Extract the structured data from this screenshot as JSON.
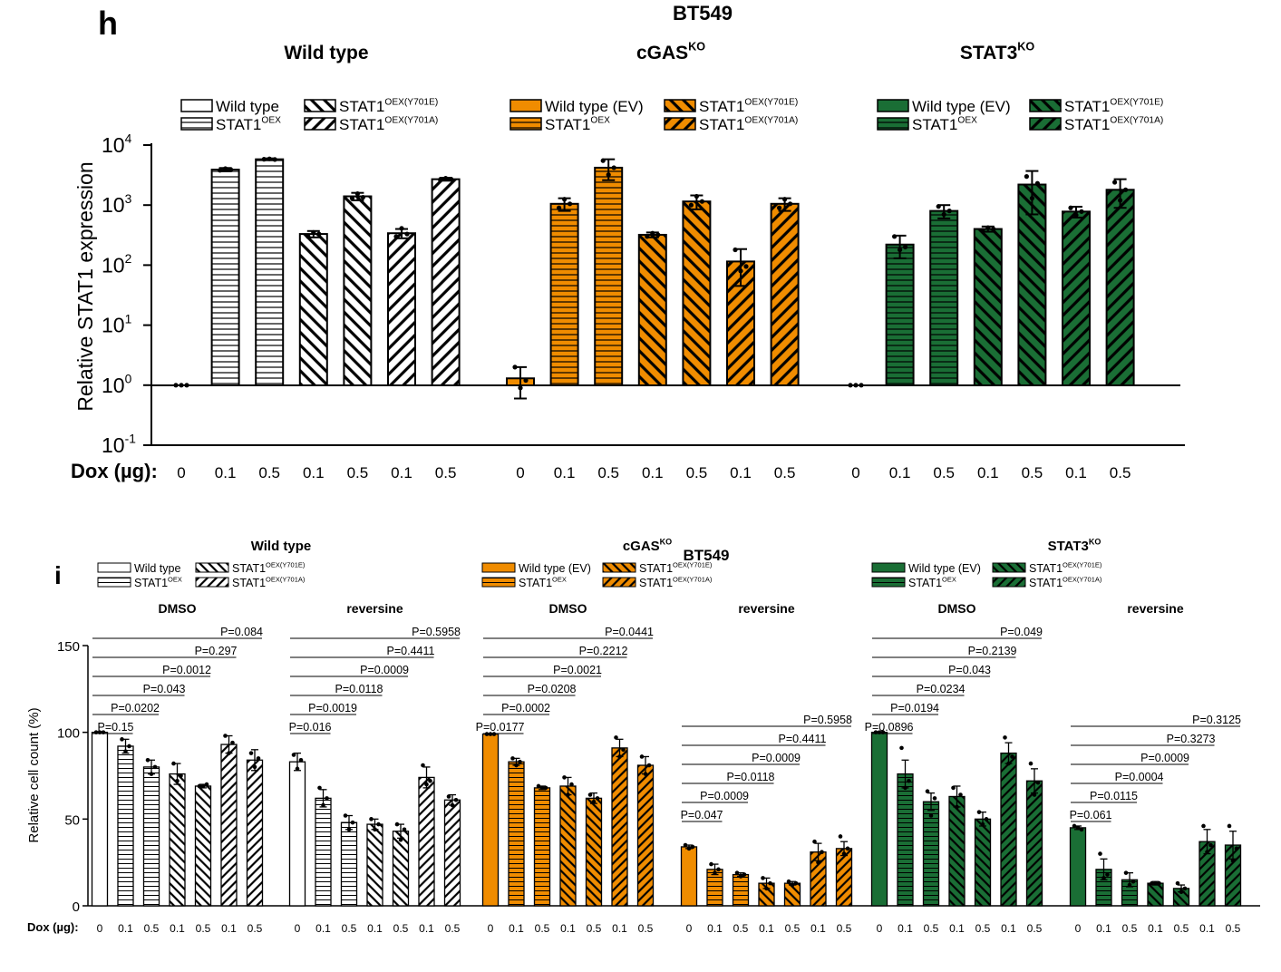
{
  "colors": {
    "wt": "#ffffff",
    "cgas": "#f08c00",
    "stat3": "#1a6e35",
    "ink": "#000000"
  },
  "panel_h": {
    "label": "h",
    "title": "BT549",
    "ylabel": "Relative STAT1 expression",
    "x_prefix": "Dox (µg):",
    "y_ticks": [
      {
        "base": "10",
        "exp": "4"
      },
      {
        "base": "10",
        "exp": "3"
      },
      {
        "base": "10",
        "exp": "2"
      },
      {
        "base": "10",
        "exp": "1"
      },
      {
        "base": "10",
        "exp": "0"
      },
      {
        "base": "10",
        "exp": "-1"
      }
    ]
  },
  "panel_i": {
    "label": "i",
    "title": "BT549",
    "ylabel": "Relative cell count (%)",
    "x_prefix": "Dox (µg):",
    "y_ticks": [
      "150",
      "100",
      "50",
      "0"
    ],
    "treatments": [
      "DMSO",
      "reversine"
    ]
  },
  "groups": [
    {
      "key": "wt",
      "title": "Wild type",
      "sup": "",
      "legend_h": [
        {
          "text": "Wild type",
          "sup": ""
        },
        {
          "text": "STAT1",
          "sup": "OEX"
        },
        {
          "text": "STAT1",
          "sup": "OEX(Y701E)"
        },
        {
          "text": "STAT1",
          "sup": "OEX(Y701A)"
        }
      ],
      "legend_i": [
        {
          "text": "Wild type",
          "sup": ""
        },
        {
          "text": "STAT1",
          "sup": "OEX"
        },
        {
          "text": "STAT1",
          "sup": "OEX(Y701E)"
        },
        {
          "text": "STAT1",
          "sup": "OEX(Y701A)"
        }
      ]
    },
    {
      "key": "cgas",
      "title": "cGAS",
      "sup": "KO",
      "legend_h": [
        {
          "text": "Wild type (EV)",
          "sup": ""
        },
        {
          "text": "STAT1",
          "sup": "OEX"
        },
        {
          "text": "STAT1",
          "sup": "OEX(Y701E)"
        },
        {
          "text": "STAT1",
          "sup": "OEX(Y701A)"
        }
      ],
      "legend_i": [
        {
          "text": "Wild type (EV)",
          "sup": ""
        },
        {
          "text": "STAT1",
          "sup": "OEX"
        },
        {
          "text": "STAT1",
          "sup": "OEX(Y701E)"
        },
        {
          "text": "STAT1",
          "sup": "OEX(Y701A)"
        }
      ]
    },
    {
      "key": "stat3",
      "title": "STAT3",
      "sup": "KO",
      "legend_h": [
        {
          "text": "Wild type (EV)",
          "sup": ""
        },
        {
          "text": "STAT1",
          "sup": "OEX"
        },
        {
          "text": "STAT1",
          "sup": "OEX(Y701E)"
        },
        {
          "text": "STAT1",
          "sup": "OEX(Y701A)"
        }
      ],
      "legend_i": [
        {
          "text": "Wild type (EV)",
          "sup": ""
        },
        {
          "text": "STAT1",
          "sup": "OEX"
        },
        {
          "text": "STAT1",
          "sup": "OEX(Y701E)"
        },
        {
          "text": "STAT1",
          "sup": "OEX(Y701A)"
        }
      ]
    }
  ],
  "chart_data": [
    {
      "type": "bar",
      "panel": "h",
      "title": "BT549",
      "ylabel": "Relative STAT1 expression",
      "xlabel": "Dox (µg)",
      "yscale": "log",
      "ylim": [
        0.1,
        10000
      ],
      "doses": [
        "0",
        "0.1",
        "0.5",
        "0.1",
        "0.5",
        "0.1",
        "0.5"
      ],
      "conditions": [
        "Wild type",
        "STAT1 OEX",
        "STAT1 OEX",
        "STAT1 OEX(Y701E)",
        "STAT1 OEX(Y701E)",
        "STAT1 OEX(Y701A)",
        "STAT1 OEX(Y701A)"
      ],
      "series": [
        {
          "name": "Wild type",
          "values": [
            1,
            3900,
            5800,
            330,
            1400,
            340,
            2700
          ],
          "err": [
            0,
            250,
            200,
            40,
            200,
            60,
            150
          ],
          "points": [
            [
              1,
              1,
              1
            ],
            [
              3800,
              4050,
              3900
            ],
            [
              5800,
              5900,
              5750
            ],
            [
              300,
              350,
              330
            ],
            [
              1300,
              1550,
              1350
            ],
            [
              300,
              410,
              330
            ],
            [
              2650,
              2800,
              2700
            ]
          ]
        },
        {
          "name": "cGAS KO",
          "values": [
            1.3,
            1050,
            4200,
            320,
            1150,
            115,
            1050
          ],
          "err": [
            0.7,
            250,
            1600,
            30,
            300,
            70,
            250
          ],
          "points": [
            [
              2.0,
              0.9,
              1.2
            ],
            [
              900,
              1250,
              1050
            ],
            [
              5500,
              3200,
              4200
            ],
            [
              300,
              340,
              320
            ],
            [
              1000,
              1400,
              1150
            ],
            [
              180,
              80,
              95
            ],
            [
              900,
              1250,
              1050
            ]
          ]
        },
        {
          "name": "STAT3 KO",
          "values": [
            1,
            220,
            800,
            400,
            2200,
            780,
            1800
          ],
          "err": [
            0,
            90,
            200,
            40,
            1500,
            160,
            900
          ],
          "points": [
            [
              1,
              1,
              1
            ],
            [
              300,
              180,
              200
            ],
            [
              950,
              700,
              800
            ],
            [
              380,
              420,
              400
            ],
            [
              3000,
              1300,
              2300
            ],
            [
              900,
              680,
              780
            ],
            [
              2400,
              1200,
              1800
            ]
          ]
        }
      ]
    },
    {
      "type": "bar",
      "panel": "i",
      "title": "BT549",
      "ylabel": "Relative cell count (%)",
      "xlabel": "Dox (µg)",
      "ylim": [
        0,
        150
      ],
      "doses": [
        "0",
        "0.1",
        "0.5",
        "0.1",
        "0.5",
        "0.1",
        "0.5"
      ],
      "conditions": [
        "Wild type",
        "STAT1 OEX",
        "STAT1 OEX",
        "STAT1 OEX(Y701E)",
        "STAT1 OEX(Y701E)",
        "STAT1 OEX(Y701A)",
        "STAT1 OEX(Y701A)"
      ],
      "series": [
        {
          "name": "Wild type / DMSO",
          "values": [
            100,
            92,
            80,
            76,
            69,
            93,
            84
          ],
          "err": [
            0,
            4,
            4,
            6,
            1,
            5,
            6
          ],
          "points": [
            [
              100,
              100,
              100
            ],
            [
              96,
              89,
              92
            ],
            [
              84,
              76,
              80
            ],
            [
              82,
              72,
              75
            ],
            [
              69,
              69,
              70
            ],
            [
              98,
              88,
              94
            ],
            [
              88,
              80,
              85
            ]
          ],
          "pvalues": [
            "P=0.15",
            "P=0.0202",
            "P=0.043",
            "P=0.0012",
            "P=0.297",
            "P=0.084"
          ]
        },
        {
          "name": "Wild type / reversine",
          "values": [
            83,
            62,
            48,
            47,
            43,
            74,
            61
          ],
          "err": [
            5,
            5,
            4,
            3,
            4,
            6,
            3
          ],
          "points": [
            [
              87,
              79,
              84
            ],
            [
              68,
              58,
              62
            ],
            [
              52,
              44,
              48
            ],
            [
              50,
              44,
              47
            ],
            [
              47,
              38,
              44
            ],
            [
              81,
              70,
              72
            ],
            [
              63,
              58,
              61
            ]
          ],
          "pvalues": [
            "P=0.016",
            "P=0.0019",
            "P=0.0118",
            "P=0.0009",
            "P=0.4411",
            "P=0.5958"
          ]
        },
        {
          "name": "cGAS KO / DMSO",
          "values": [
            99,
            83,
            68,
            69,
            62,
            91,
            81
          ],
          "err": [
            0,
            2,
            1,
            5,
            3,
            5,
            5
          ],
          "points": [
            [
              99,
              99,
              99
            ],
            [
              85,
              81,
              83
            ],
            [
              69,
              68,
              68
            ],
            [
              74,
              64,
              70
            ],
            [
              64,
              60,
              62
            ],
            [
              97,
              86,
              90
            ],
            [
              86,
              76,
              81
            ]
          ],
          "pvalues": [
            "P=0.0177",
            "P=0.0002",
            "P=0.0208",
            "P=0.0021",
            "P=0.2212",
            "P=0.0441"
          ]
        },
        {
          "name": "cGAS KO / reversine",
          "values": [
            34,
            21,
            18,
            13,
            13,
            31,
            33
          ],
          "err": [
            1,
            3,
            1,
            3,
            1,
            5,
            4
          ],
          "points": [
            [
              35,
              33,
              34
            ],
            [
              24,
              19,
              21
            ],
            [
              19,
              17,
              18
            ],
            [
              16,
              10,
              13
            ],
            [
              14,
              12,
              13
            ],
            [
              37,
              25,
              31
            ],
            [
              40,
              30,
              33
            ]
          ],
          "pvalues": [
            "P=0.047",
            "P=0.0009",
            "P=0.0118",
            "P=0.0009",
            "P=0.4411",
            "P=0.5958"
          ]
        },
        {
          "name": "STAT3 KO / DMSO",
          "values": [
            100,
            76,
            60,
            63,
            50,
            88,
            72
          ],
          "err": [
            0,
            8,
            5,
            6,
            4,
            6,
            7
          ],
          "points": [
            [
              100,
              100,
              100
            ],
            [
              91,
              68,
              72
            ],
            [
              66,
              52,
              62
            ],
            [
              68,
              57,
              64
            ],
            [
              54,
              47,
              50
            ],
            [
              97,
              82,
              86
            ],
            [
              82,
              64,
              71
            ]
          ],
          "pvalues": [
            "P=0.0896",
            "P=0.0194",
            "P=0.0234",
            "P=0.043",
            "P=0.2139",
            "P=0.049"
          ]
        },
        {
          "name": "STAT3 KO / reversine",
          "values": [
            45,
            21,
            15,
            13,
            10,
            37,
            35
          ],
          "err": [
            1,
            6,
            4,
            1,
            2,
            7,
            8
          ],
          "points": [
            [
              46,
              45,
              44
            ],
            [
              30,
              16,
              18
            ],
            [
              19,
              12,
              14
            ],
            [
              13,
              13,
              13
            ],
            [
              13,
              8,
              10
            ],
            [
              46,
              31,
              35
            ],
            [
              46,
              26,
              33
            ]
          ],
          "pvalues": [
            "P=0.061",
            "P=0.0115",
            "P=0.0004",
            "P=0.0009",
            "P=0.3273",
            "P=0.3125"
          ]
        }
      ]
    }
  ]
}
